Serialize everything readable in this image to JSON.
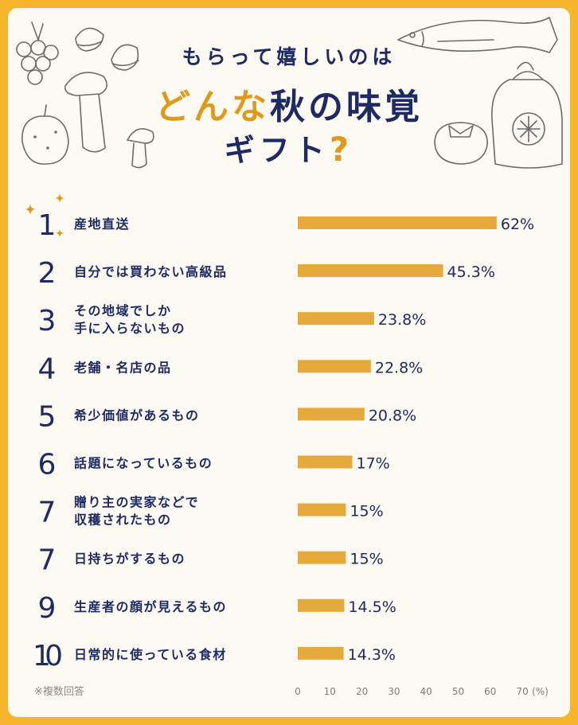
{
  "title": {
    "line1": "もらって嬉しいのは",
    "line2_highlight": "どんな",
    "line2_rest": "秋の味覚",
    "line3": "ギフト",
    "line3_mark": "?"
  },
  "colors": {
    "frame": "#f6b62c",
    "background": "#fdfaf3",
    "bar": "#e6aa3c",
    "navy": "#1d2a63",
    "accent": "#e09a1b"
  },
  "icons": [
    "grapes-icon",
    "chestnut-icon",
    "mushroom-icon",
    "pear-icon",
    "fish-icon",
    "rice-bag-icon",
    "persimmon-icon",
    "sparkle-icon"
  ],
  "chart_data": {
    "type": "bar",
    "orientation": "horizontal",
    "unit": "%",
    "xlim": [
      0,
      70
    ],
    "ticks": [
      0,
      10,
      20,
      30,
      40,
      50,
      60,
      70
    ],
    "tick_unit_label": "(%)",
    "note": "※複数回答",
    "rows": [
      {
        "rank": "1",
        "lines": [
          "産地直送"
        ],
        "value": 62,
        "label": "62%"
      },
      {
        "rank": "2",
        "lines": [
          "自分では買わない高級品"
        ],
        "value": 45.3,
        "label": "45.3%"
      },
      {
        "rank": "3",
        "lines": [
          "その地域でしか",
          "手に入らないもの"
        ],
        "value": 23.8,
        "label": "23.8%"
      },
      {
        "rank": "4",
        "lines": [
          "老舗・名店の品"
        ],
        "value": 22.8,
        "label": "22.8%"
      },
      {
        "rank": "5",
        "lines": [
          "希少価値があるもの"
        ],
        "value": 20.8,
        "label": "20.8%"
      },
      {
        "rank": "6",
        "lines": [
          "話題になっているもの"
        ],
        "value": 17,
        "label": "17%"
      },
      {
        "rank": "7",
        "lines": [
          "贈り主の実家などで",
          "収穫されたもの"
        ],
        "value": 15,
        "label": "15%"
      },
      {
        "rank": "7",
        "lines": [
          "日持ちがするもの"
        ],
        "value": 15,
        "label": "15%"
      },
      {
        "rank": "9",
        "lines": [
          "生産者の顔が見えるもの"
        ],
        "value": 14.5,
        "label": "14.5%"
      },
      {
        "rank": "10",
        "lines": [
          "日常的に使っている食材"
        ],
        "value": 14.3,
        "label": "14.3%"
      }
    ]
  }
}
